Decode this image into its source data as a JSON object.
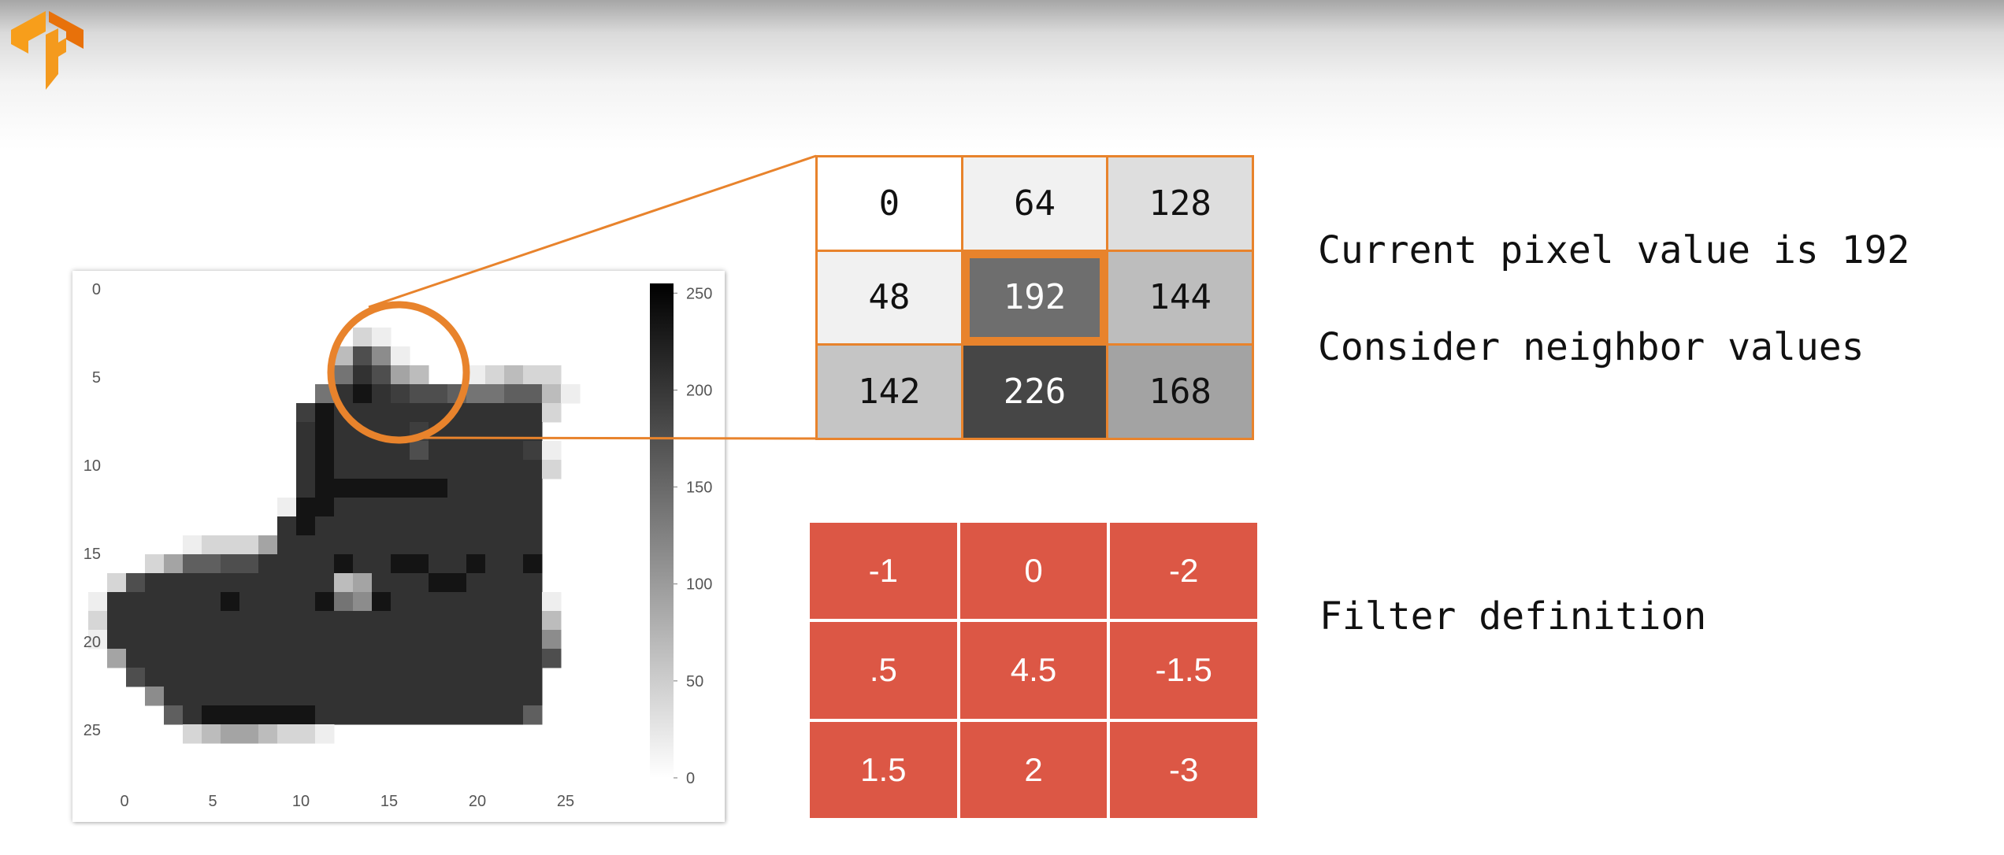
{
  "header": {
    "logo_icon": "tensorflow-logo-icon",
    "logo_color": "#f28c22"
  },
  "image_plot": {
    "x_ticks": [
      "0",
      "5",
      "10",
      "15",
      "20",
      "25"
    ],
    "y_ticks": [
      "0",
      "5",
      "10",
      "15",
      "20",
      "25"
    ],
    "colorbar_ticks": [
      "250",
      "200",
      "150",
      "100",
      "50",
      "0"
    ],
    "colorbar_max": 255,
    "image_rows": [
      "..........................",
      "..........................",
      "..........................",
      "..............BA..........",
      ".............CHEA.........",
      ".............FJHDC..ABCBB.",
      "............FJKJIHHGFFGGCA",
      "...........IKJJJJJJJJJJJB.",
      "...........JKJJJJIJJJJJJ..",
      "...........JKJJJJHJJJJJIA.",
      "...........JKJJJJJJJJJJJB.",
      "...........JKKKKKKKJJJJJ..",
      "..........AKKJJJJJJJJJJJ..",
      "..........JKJJJJJJJJJJJJ..",
      ".....ABBBDJJJJJJJJJJJJJJ..",
      "...BDGGHHJJJJKJJKKJJKJJK..",
      ".BHJJJJJJJJJJCDJJJKKJJJJ..",
      "AJJJJJJKJJJJKFEKJJJJJJJJA.",
      "BJJJJJJJJJJJJJJJJJJJJJJJC.",
      "AJJJJJJJJJJJJJJJJJJJJJJJE.",
      ".DJJJJJJJJJJJJJJJJJJJJJJH.",
      "..HJJJJJJJJJJJJJJJJJJJJJ..",
      "...EJJJJJJJJJJJJJJJJJJJJ..",
      "....GJKKKKKKJJJJJJJJJJJG..",
      ".....BCDDCBBA.............",
      "..........................",
      ".........................."
    ]
  },
  "pixel_grid": {
    "cells": [
      {
        "value": "0",
        "bg": "#ffffff",
        "fg": "#111111"
      },
      {
        "value": "64",
        "bg": "#f1f1f1",
        "fg": "#111111"
      },
      {
        "value": "128",
        "bg": "#dedede",
        "fg": "#111111"
      },
      {
        "value": "48",
        "bg": "#f1f1f1",
        "fg": "#111111"
      },
      {
        "value": "192",
        "bg": "#6e6e6e",
        "fg": "#ffffff"
      },
      {
        "value": "144",
        "bg": "#bdbdbd",
        "fg": "#111111"
      },
      {
        "value": "142",
        "bg": "#c5c5c5",
        "fg": "#111111"
      },
      {
        "value": "226",
        "bg": "#464646",
        "fg": "#ffffff"
      },
      {
        "value": "168",
        "bg": "#a3a3a3",
        "fg": "#111111"
      }
    ],
    "highlight_color": "#e8832c"
  },
  "filter_grid": {
    "cells": [
      "-1",
      "0",
      "-2",
      ".5",
      "4.5",
      "-1.5",
      "1.5",
      "2",
      "-3"
    ],
    "color": "#dc5745"
  },
  "captions": {
    "current_pixel": "Current pixel value is 192",
    "neighbors": "Consider neighbor values",
    "filter": "Filter definition"
  }
}
